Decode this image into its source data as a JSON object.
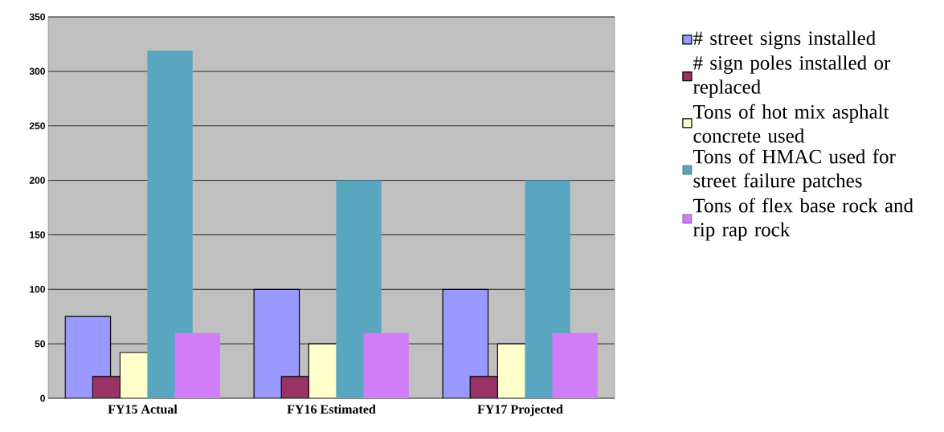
{
  "chart_data": {
    "type": "bar",
    "categories": [
      "FY15 Actual",
      "FY16 Estimated",
      "FY17 Projected"
    ],
    "series": [
      {
        "name": "# street signs installed",
        "color": "#9999ff",
        "values": [
          75,
          100,
          100
        ]
      },
      {
        "name": "# sign poles installed or replaced",
        "color": "#993366",
        "values": [
          20,
          20,
          20
        ]
      },
      {
        "name": "Tons of hot mix asphalt concrete used",
        "color": "#ffffcc",
        "values": [
          42,
          50,
          50
        ]
      },
      {
        "name": "Tons of HMAC used for street failure patches",
        "color": "#59a6c0",
        "values": [
          319,
          200,
          200
        ]
      },
      {
        "name": "Tons of flex base rock and rip rap rock",
        "color": "#cf7ef7",
        "values": [
          60,
          60,
          60
        ]
      }
    ],
    "ylim": [
      0,
      350
    ],
    "yticks": [
      0,
      50,
      100,
      150,
      200,
      250,
      300,
      350
    ],
    "grid": "y",
    "legend": "right"
  }
}
